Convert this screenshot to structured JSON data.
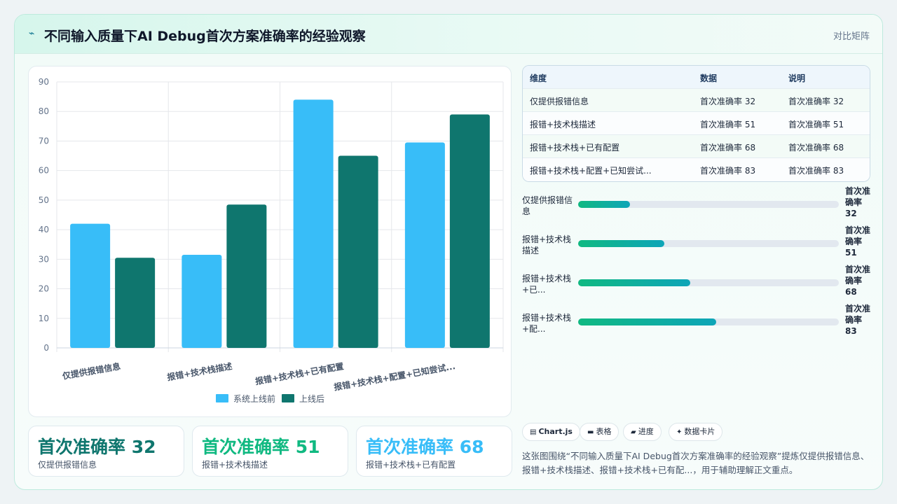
{
  "header": {
    "title": "不同输入质量下AI Debug首次方案准确率的经验观察",
    "tag": "对比矩阵"
  },
  "chart_data": {
    "type": "bar",
    "categories": [
      "仅提供报错信息",
      "报错+技术栈描述",
      "报错+技术栈+已有配置",
      "报错+技术栈+配置+已知尝试..."
    ],
    "series": [
      {
        "name": "系统上线前",
        "color": "#38bdf8",
        "values": [
          42,
          31.5,
          84,
          69.5
        ]
      },
      {
        "name": "上线后",
        "color": "#0f766e",
        "values": [
          30.5,
          48.5,
          65,
          79
        ]
      }
    ],
    "ylim": [
      0,
      90
    ],
    "yticks": [
      "0",
      "10",
      "20",
      "30",
      "40",
      "50",
      "60",
      "70",
      "80",
      "90"
    ],
    "grid": true,
    "legend_position": "bottom"
  },
  "stats": [
    {
      "value": "首次准确率 32",
      "label": "仅提供报错信息",
      "color": "#0f766e"
    },
    {
      "value": "首次准确率 51",
      "label": "报错+技术栈描述",
      "color": "#10b981"
    },
    {
      "value": "首次准确率 68",
      "label": "报错+技术栈+已有配置",
      "color": "#38bdf8"
    }
  ],
  "table": {
    "headers": [
      "维度",
      "数据",
      "说明"
    ],
    "rows": [
      [
        "仅提供报错信息",
        "首次准确率 32",
        "首次准确率 32"
      ],
      [
        "报错+技术栈描述",
        "首次准确率 51",
        "首次准确率 51"
      ],
      [
        "报错+技术栈+已有配置",
        "首次准确率 68",
        "首次准确率 68"
      ],
      [
        "报错+技术栈+配置+已知尝试...",
        "首次准确率 83",
        "首次准确率 83"
      ]
    ]
  },
  "progress": [
    {
      "label": "仅提供报错信息",
      "value_text": "首次准确率 32",
      "fraction": 0.2
    },
    {
      "label": "报错+技术栈描述",
      "value_text": "首次准确率 51",
      "fraction": 0.33
    },
    {
      "label": "报错+技术栈+已...",
      "value_text": "首次准确率 68",
      "fraction": 0.43
    },
    {
      "label": "报错+技术栈+配...",
      "value_text": "首次准确率 83",
      "fraction": 0.53
    }
  ],
  "chips": [
    {
      "icon": "chart-icon",
      "glyph": "▤",
      "label": "Chart.js"
    },
    {
      "icon": "table-icon",
      "glyph": "▬",
      "label": "表格"
    },
    {
      "icon": "progress-icon",
      "glyph": "▰",
      "label": "进度"
    },
    {
      "icon": "card-icon",
      "glyph": "✦",
      "label": "数据卡片"
    }
  ],
  "summary": "这张图围绕“不同输入质量下AI Debug首次方案准确率的经验观察”提炼仅提供报错信息、报错+技术栈描述、报错+技术栈+已有配...，用于辅助理解正文重点。"
}
